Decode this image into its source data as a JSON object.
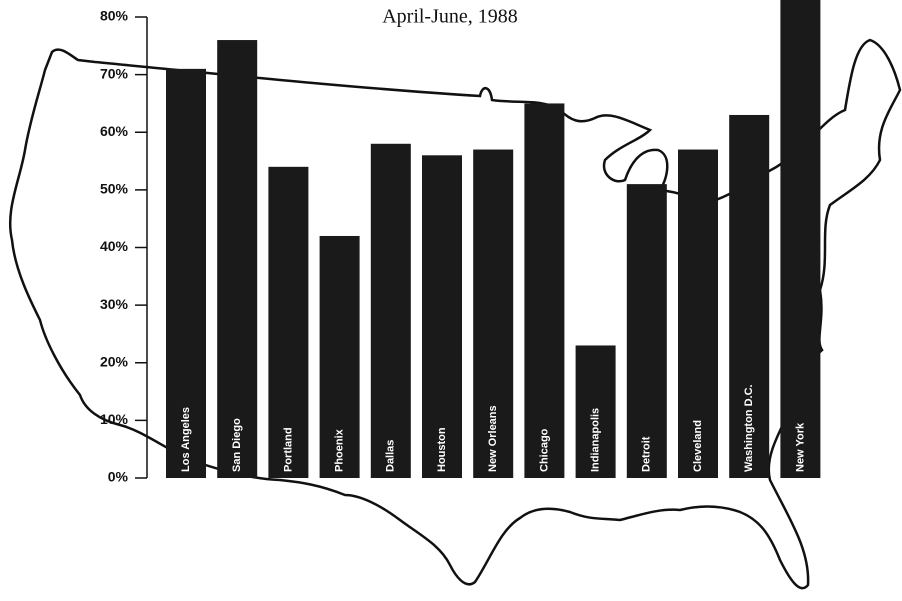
{
  "chart_data": {
    "type": "bar",
    "title": "April-June, 1988",
    "categories": [
      "Los Angeles",
      "San Diego",
      "Portland",
      "Phoenix",
      "Dallas",
      "Houston",
      "New Orleans",
      "Chicago",
      "Indianapolis",
      "Detroit",
      "Cleveland",
      "Washington D.C.",
      "New York"
    ],
    "values": [
      71,
      76,
      54,
      42,
      58,
      56,
      57,
      65,
      23,
      51,
      57,
      63,
      83
    ],
    "color": "#1a1a1a",
    "ylim": [
      0,
      80
    ],
    "yticks": [
      {
        "value": 0,
        "label": "0%"
      },
      {
        "value": 10,
        "label": "10%"
      },
      {
        "value": 20,
        "label": "20%"
      },
      {
        "value": 30,
        "label": "30%"
      },
      {
        "value": 40,
        "label": "40%"
      },
      {
        "value": 50,
        "label": "50%"
      },
      {
        "value": 60,
        "label": "60%"
      },
      {
        "value": 70,
        "label": "70%"
      },
      {
        "value": 80,
        "label": "80%"
      }
    ],
    "grid": false
  }
}
